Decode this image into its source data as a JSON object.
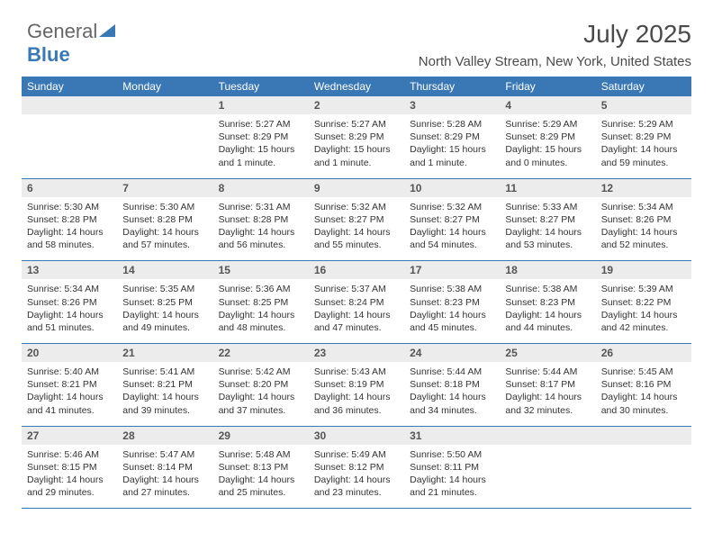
{
  "logo": {
    "text1": "General",
    "text2": "Blue",
    "triangle_color": "#3a78b5"
  },
  "title": "July 2025",
  "subtitle": "North Valley Stream, New York, United States",
  "colors": {
    "header_bg": "#3a78b5",
    "header_text": "#ffffff",
    "daynum_bg": "#ececec",
    "border": "#3a78b5",
    "text": "#333333"
  },
  "day_headers": [
    "Sunday",
    "Monday",
    "Tuesday",
    "Wednesday",
    "Thursday",
    "Friday",
    "Saturday"
  ],
  "weeks": [
    [
      {
        "n": "",
        "sr": "",
        "ss": "",
        "dl": ""
      },
      {
        "n": "",
        "sr": "",
        "ss": "",
        "dl": ""
      },
      {
        "n": "1",
        "sr": "5:27 AM",
        "ss": "8:29 PM",
        "dl": "15 hours and 1 minute."
      },
      {
        "n": "2",
        "sr": "5:27 AM",
        "ss": "8:29 PM",
        "dl": "15 hours and 1 minute."
      },
      {
        "n": "3",
        "sr": "5:28 AM",
        "ss": "8:29 PM",
        "dl": "15 hours and 1 minute."
      },
      {
        "n": "4",
        "sr": "5:29 AM",
        "ss": "8:29 PM",
        "dl": "15 hours and 0 minutes."
      },
      {
        "n": "5",
        "sr": "5:29 AM",
        "ss": "8:29 PM",
        "dl": "14 hours and 59 minutes."
      }
    ],
    [
      {
        "n": "6",
        "sr": "5:30 AM",
        "ss": "8:28 PM",
        "dl": "14 hours and 58 minutes."
      },
      {
        "n": "7",
        "sr": "5:30 AM",
        "ss": "8:28 PM",
        "dl": "14 hours and 57 minutes."
      },
      {
        "n": "8",
        "sr": "5:31 AM",
        "ss": "8:28 PM",
        "dl": "14 hours and 56 minutes."
      },
      {
        "n": "9",
        "sr": "5:32 AM",
        "ss": "8:27 PM",
        "dl": "14 hours and 55 minutes."
      },
      {
        "n": "10",
        "sr": "5:32 AM",
        "ss": "8:27 PM",
        "dl": "14 hours and 54 minutes."
      },
      {
        "n": "11",
        "sr": "5:33 AM",
        "ss": "8:27 PM",
        "dl": "14 hours and 53 minutes."
      },
      {
        "n": "12",
        "sr": "5:34 AM",
        "ss": "8:26 PM",
        "dl": "14 hours and 52 minutes."
      }
    ],
    [
      {
        "n": "13",
        "sr": "5:34 AM",
        "ss": "8:26 PM",
        "dl": "14 hours and 51 minutes."
      },
      {
        "n": "14",
        "sr": "5:35 AM",
        "ss": "8:25 PM",
        "dl": "14 hours and 49 minutes."
      },
      {
        "n": "15",
        "sr": "5:36 AM",
        "ss": "8:25 PM",
        "dl": "14 hours and 48 minutes."
      },
      {
        "n": "16",
        "sr": "5:37 AM",
        "ss": "8:24 PM",
        "dl": "14 hours and 47 minutes."
      },
      {
        "n": "17",
        "sr": "5:38 AM",
        "ss": "8:23 PM",
        "dl": "14 hours and 45 minutes."
      },
      {
        "n": "18",
        "sr": "5:38 AM",
        "ss": "8:23 PM",
        "dl": "14 hours and 44 minutes."
      },
      {
        "n": "19",
        "sr": "5:39 AM",
        "ss": "8:22 PM",
        "dl": "14 hours and 42 minutes."
      }
    ],
    [
      {
        "n": "20",
        "sr": "5:40 AM",
        "ss": "8:21 PM",
        "dl": "14 hours and 41 minutes."
      },
      {
        "n": "21",
        "sr": "5:41 AM",
        "ss": "8:21 PM",
        "dl": "14 hours and 39 minutes."
      },
      {
        "n": "22",
        "sr": "5:42 AM",
        "ss": "8:20 PM",
        "dl": "14 hours and 37 minutes."
      },
      {
        "n": "23",
        "sr": "5:43 AM",
        "ss": "8:19 PM",
        "dl": "14 hours and 36 minutes."
      },
      {
        "n": "24",
        "sr": "5:44 AM",
        "ss": "8:18 PM",
        "dl": "14 hours and 34 minutes."
      },
      {
        "n": "25",
        "sr": "5:44 AM",
        "ss": "8:17 PM",
        "dl": "14 hours and 32 minutes."
      },
      {
        "n": "26",
        "sr": "5:45 AM",
        "ss": "8:16 PM",
        "dl": "14 hours and 30 minutes."
      }
    ],
    [
      {
        "n": "27",
        "sr": "5:46 AM",
        "ss": "8:15 PM",
        "dl": "14 hours and 29 minutes."
      },
      {
        "n": "28",
        "sr": "5:47 AM",
        "ss": "8:14 PM",
        "dl": "14 hours and 27 minutes."
      },
      {
        "n": "29",
        "sr": "5:48 AM",
        "ss": "8:13 PM",
        "dl": "14 hours and 25 minutes."
      },
      {
        "n": "30",
        "sr": "5:49 AM",
        "ss": "8:12 PM",
        "dl": "14 hours and 23 minutes."
      },
      {
        "n": "31",
        "sr": "5:50 AM",
        "ss": "8:11 PM",
        "dl": "14 hours and 21 minutes."
      },
      {
        "n": "",
        "sr": "",
        "ss": "",
        "dl": ""
      },
      {
        "n": "",
        "sr": "",
        "ss": "",
        "dl": ""
      }
    ]
  ],
  "labels": {
    "sunrise": "Sunrise: ",
    "sunset": "Sunset: ",
    "daylight": "Daylight: "
  }
}
